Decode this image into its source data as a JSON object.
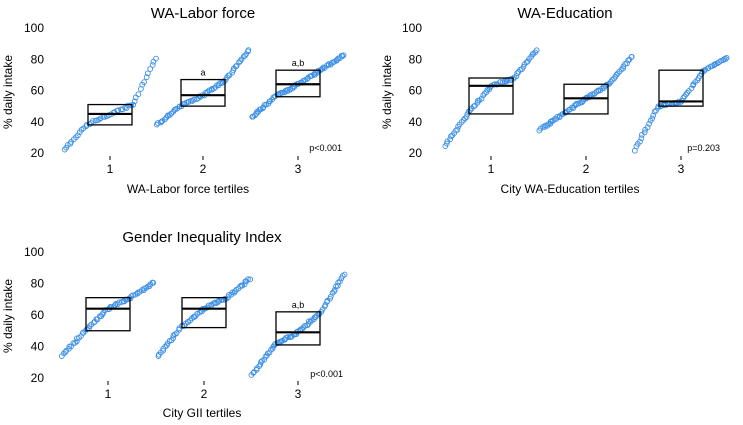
{
  "chart_data": [
    {
      "type": "box-with-jittered-points",
      "title": "WA-Labor force",
      "xlabel": "WA-Labor force tertiles",
      "ylabel": "% daily intake",
      "ylim": [
        20,
        100
      ],
      "yticks": [
        "20",
        "40",
        "60",
        "80",
        "100"
      ],
      "categories": [
        "1",
        "2",
        "3"
      ],
      "boxes": [
        {
          "category": "1",
          "q1": 38,
          "median": 45,
          "q3": 51,
          "annotation": ""
        },
        {
          "category": "2",
          "q1": 50,
          "median": 57,
          "q3": 67,
          "annotation": "a"
        },
        {
          "category": "3",
          "q1": 56,
          "median": 64,
          "q3": 73,
          "annotation": "a,b"
        }
      ],
      "point_ranges": [
        {
          "category": "1",
          "min": 22,
          "max": 81,
          "n": 48
        },
        {
          "category": "2",
          "min": 38,
          "max": 86,
          "n": 64
        },
        {
          "category": "3",
          "min": 43,
          "max": 83,
          "n": 70
        }
      ],
      "pvalue": "p<0.001"
    },
    {
      "type": "box-with-jittered-points",
      "title": "WA-Education",
      "xlabel": "City WA-Education tertiles",
      "ylabel": "% daily intake",
      "ylim": [
        20,
        100
      ],
      "yticks": [
        "20",
        "40",
        "60",
        "80",
        "100"
      ],
      "categories": [
        "1",
        "2",
        "3"
      ],
      "boxes": [
        {
          "category": "1",
          "q1": 45,
          "median": 63,
          "q3": 68,
          "annotation": ""
        },
        {
          "category": "2",
          "q1": 45,
          "median": 55,
          "q3": 64,
          "annotation": ""
        },
        {
          "category": "3",
          "q1": 50,
          "median": 53,
          "q3": 73,
          "annotation": ""
        }
      ],
      "point_ranges": [
        {
          "category": "1",
          "min": 25,
          "max": 86,
          "n": 62
        },
        {
          "category": "2",
          "min": 35,
          "max": 82,
          "n": 68
        },
        {
          "category": "3",
          "min": 22,
          "max": 81,
          "n": 62
        }
      ],
      "pvalue": "p=0.203"
    },
    {
      "type": "box-with-jittered-points",
      "title": "Gender Inequality Index",
      "xlabel": "City GII tertiles",
      "ylabel": "% daily intake",
      "ylim": [
        20,
        100
      ],
      "yticks": [
        "20",
        "40",
        "60",
        "80",
        "100"
      ],
      "categories": [
        "1",
        "2",
        "3"
      ],
      "boxes": [
        {
          "category": "1",
          "q1": 50,
          "median": 64,
          "q3": 71,
          "annotation": ""
        },
        {
          "category": "2",
          "q1": 52,
          "median": 64,
          "q3": 71,
          "annotation": ""
        },
        {
          "category": "3",
          "q1": 41,
          "median": 49,
          "q3": 62,
          "annotation": "a,b"
        }
      ],
      "point_ranges": [
        {
          "category": "1",
          "min": 34,
          "max": 81,
          "n": 60
        },
        {
          "category": "2",
          "min": 34,
          "max": 83,
          "n": 64
        },
        {
          "category": "3",
          "min": 22,
          "max": 86,
          "n": 70
        }
      ],
      "pvalue": "p<0.001"
    }
  ],
  "colors": {
    "points": "#3a8ee6",
    "box": "#000000",
    "tick_text": "#000000"
  }
}
